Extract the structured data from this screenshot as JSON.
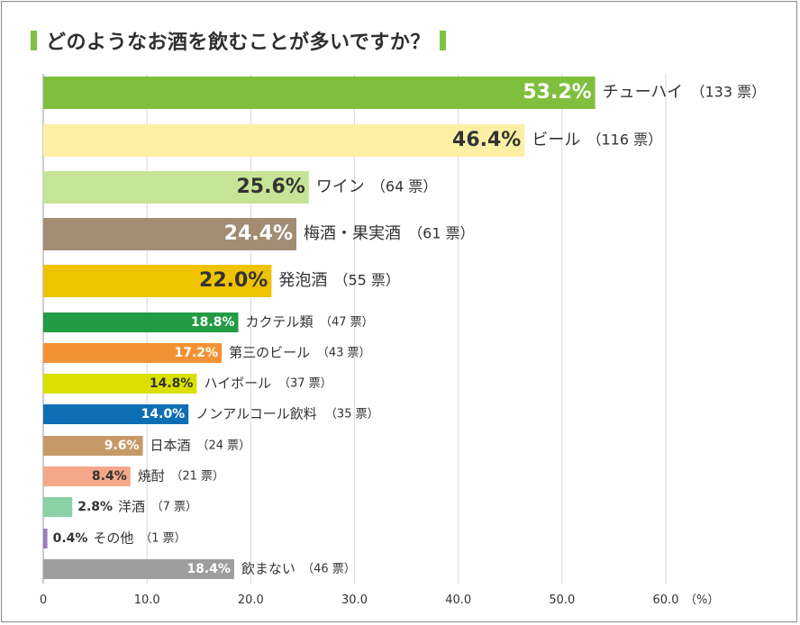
{
  "title": "どのようなお酒を飲むことが多いですか？",
  "chart_data": {
    "type": "bar",
    "orientation": "horizontal",
    "title": "どのようなお酒を飲むことが多いですか？",
    "x_ticks": [
      "0",
      "10.0",
      "20.0",
      "30.0",
      "40.0",
      "50.0",
      "60.0"
    ],
    "x_unit": "（%）",
    "xlim": [
      0,
      60
    ],
    "grid": true,
    "categories": [
      "チューハイ",
      "ビール",
      "ワイン",
      "梅酒・果実酒",
      "発泡酒",
      "カクテル類",
      "第三のビール",
      "ハイボール",
      "ノンアルコール飲料",
      "日本酒",
      "焼酎",
      "洋酒",
      "その他",
      "飲まない"
    ],
    "values": [
      53.2,
      46.4,
      25.6,
      24.4,
      22.0,
      18.8,
      17.2,
      14.8,
      14.0,
      9.6,
      8.4,
      2.8,
      0.4,
      18.4
    ],
    "value_labels": [
      "53.2%",
      "46.4%",
      "25.6%",
      "24.4%",
      "22.0%",
      "18.8%",
      "17.2%",
      "14.8%",
      "14.0%",
      "9.6%",
      "8.4%",
      "2.8%",
      "0.4%",
      "18.4%"
    ],
    "count_labels": [
      "（133 票）",
      "（116 票）",
      "（64 票）",
      "（61 票）",
      "（55 票）",
      "（47 票）",
      "（43 票）",
      "（37 票）",
      "（35 票）",
      "（24 票）",
      "（21 票）",
      "（7 票）",
      "（1 票）",
      "（46 票）"
    ],
    "colors": [
      "#7fbf3d",
      "#fdf0a5",
      "#c6e495",
      "#a28c72",
      "#efc300",
      "#239a44",
      "#f39234",
      "#dbe000",
      "#0f6fb5",
      "#c69a68",
      "#f5a889",
      "#8bd0a6",
      "#9a7cc0",
      "#9d9d9d"
    ],
    "label_colors": [
      "#ffffff",
      "#333333",
      "#333333",
      "#ffffff",
      "#333333",
      "#ffffff",
      "#ffffff",
      "#333333",
      "#ffffff",
      "#ffffff",
      "#333333",
      "#333333",
      "#333333",
      "#ffffff"
    ]
  }
}
